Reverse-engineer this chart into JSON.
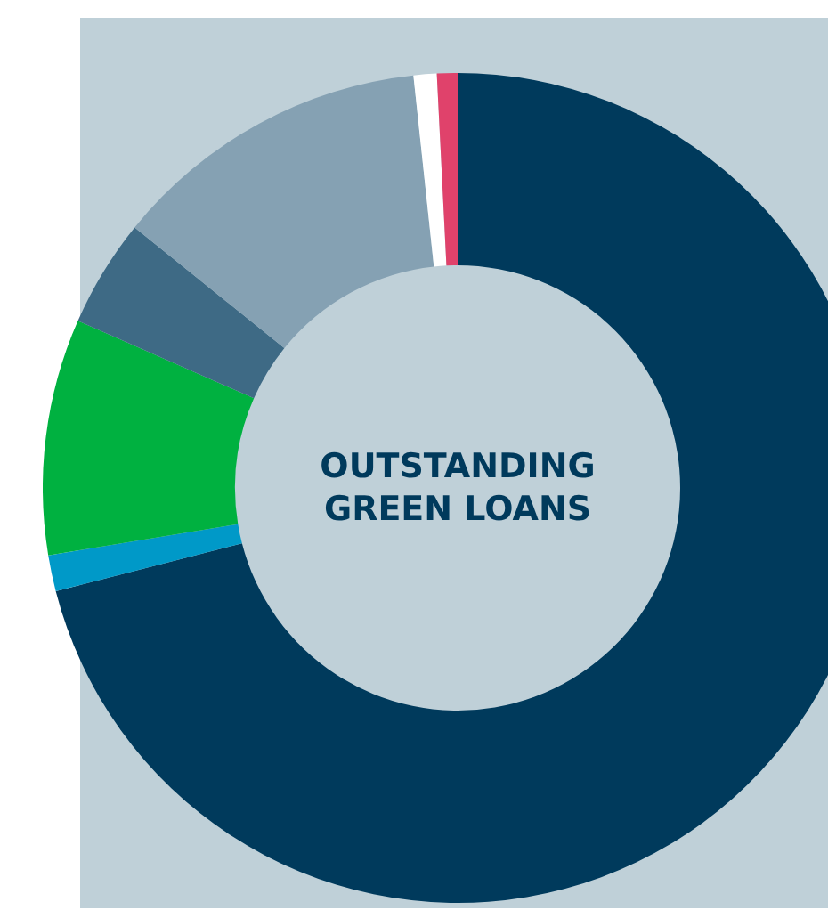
{
  "chart_data": {
    "type": "donut",
    "title": "OUTSTANDING GREEN LOANS",
    "categories": [
      null,
      null,
      null,
      null,
      null,
      null,
      null
    ],
    "values": [
      71.0,
      1.4,
      9.2,
      4.2,
      12.5,
      0.9,
      0.8
    ],
    "colors": [
      "#003a5c",
      "#0099c8",
      "#00b140",
      "#3e6a85",
      "#85a1b3",
      "#ffffff",
      "#e0426b"
    ]
  }
}
